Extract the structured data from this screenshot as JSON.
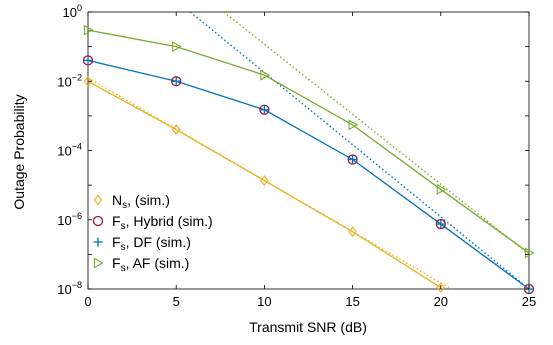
{
  "chart_data": {
    "type": "line",
    "xlabel": "Transmit SNR (dB)",
    "ylabel": "Outage Probability",
    "xlim": [
      0,
      25
    ],
    "ylim_exp": [
      -8,
      0
    ],
    "y_scale": "log",
    "grid": false,
    "legend_placement": "bottom-left",
    "x_ticks": [
      "0",
      "5",
      "10",
      "15",
      "20",
      "25"
    ],
    "y_ticks": [
      {
        "base": "10",
        "exp": "0",
        "value": 1
      },
      {
        "base": "10",
        "exp": "−2",
        "value": 0.01
      },
      {
        "base": "10",
        "exp": "−4",
        "value": 0.0001
      },
      {
        "base": "10",
        "exp": "−6",
        "value": 1e-06
      },
      {
        "base": "10",
        "exp": "−8",
        "value": 1e-08
      }
    ],
    "series": [
      {
        "name": "N",
        "name_sub": "s",
        "name_suffix": ", (sim.)",
        "color": "#EDB120",
        "marker": "diamond",
        "x": [
          0,
          5,
          10,
          15,
          20
        ],
        "y": [
          0.01,
          0.0004,
          1.35e-05,
          4.5e-07,
          1.1e-08
        ],
        "asymptote": {
          "x": [
            0,
            20.6
          ],
          "y": [
            0.0125,
            1e-08
          ]
        }
      },
      {
        "name": "F",
        "name_sub": "s",
        "name_suffix": ", Hybrid (sim.)",
        "color": "#A2142F",
        "marker": "circle",
        "x": [
          0,
          5,
          10,
          15,
          20,
          25
        ],
        "y": [
          0.04,
          0.01,
          0.0015,
          5.5e-05,
          7.5e-07,
          1e-08
        ],
        "asymptote": null
      },
      {
        "name": "F",
        "name_sub": "s",
        "name_suffix": ", DF (sim.)",
        "color": "#0072BD",
        "marker": "plus",
        "x": [
          0,
          5,
          10,
          15,
          20,
          25
        ],
        "y": [
          0.04,
          0.01,
          0.0015,
          5.5e-05,
          7.5e-07,
          1e-08
        ],
        "asymptote": {
          "x": [
            5.8,
            25
          ],
          "y": [
            1,
            1e-08
          ]
        }
      },
      {
        "name": "F",
        "name_sub": "s",
        "name_suffix": ", AF (sim.)",
        "color": "#77AC30",
        "marker": "triangle-right",
        "x": [
          0,
          5,
          10,
          15,
          20,
          25
        ],
        "y": [
          0.3,
          0.1,
          0.015,
          0.00055,
          7.5e-06,
          1.1e-07
        ],
        "asymptote": {
          "x": [
            7.7,
            25
          ],
          "y": [
            1,
            1e-07
          ]
        }
      }
    ]
  }
}
